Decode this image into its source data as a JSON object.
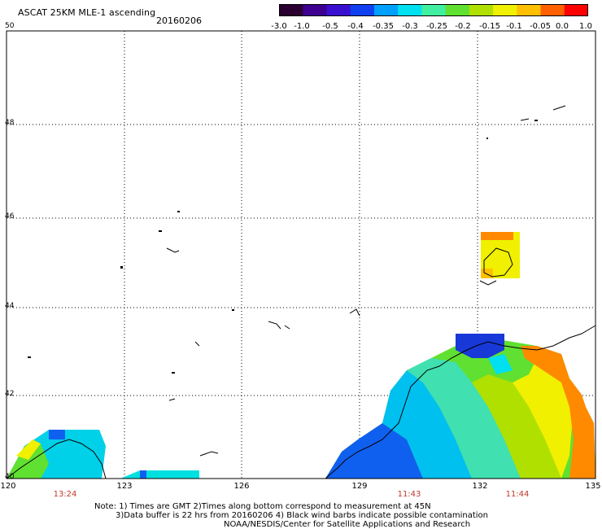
{
  "header": {
    "title": "ASCAT 25KM MLE-1 ascending",
    "date": "20160206"
  },
  "colorbar": {
    "tick_labels": [
      "-3.0",
      "-1.0",
      "-0.5",
      "-0.4",
      "-0.35",
      "-0.3",
      "-0.25",
      "-0.2",
      "-0.15",
      "-0.1",
      "-0.05",
      "0.0",
      "1.0"
    ],
    "colors": [
      "#2b0030",
      "#3d0090",
      "#3a10d0",
      "#1040f0",
      "#00a0ff",
      "#00e0f0",
      "#40f0a0",
      "#60e030",
      "#b0e000",
      "#f0f000",
      "#ffc000",
      "#ff6000",
      "#ff0000"
    ]
  },
  "axes": {
    "lat_labels": [
      "50",
      "48",
      "46",
      "44",
      "42",
      "40"
    ],
    "lon_labels": [
      "120",
      "123",
      "126",
      "129",
      "132",
      "135"
    ],
    "pass_times": [
      "13:24",
      "11:43",
      "11:44"
    ]
  },
  "notes": {
    "line1": "Note: 1) Times are GMT 2)Times along bottom correspond to measurement at 45N",
    "line2": "3)Data buffer is 22 hrs from 20160206 4) Black wind barbs indicate possible contamination",
    "line3": "NOAA/NESDIS/Center for Satellite Applications and Research"
  }
}
